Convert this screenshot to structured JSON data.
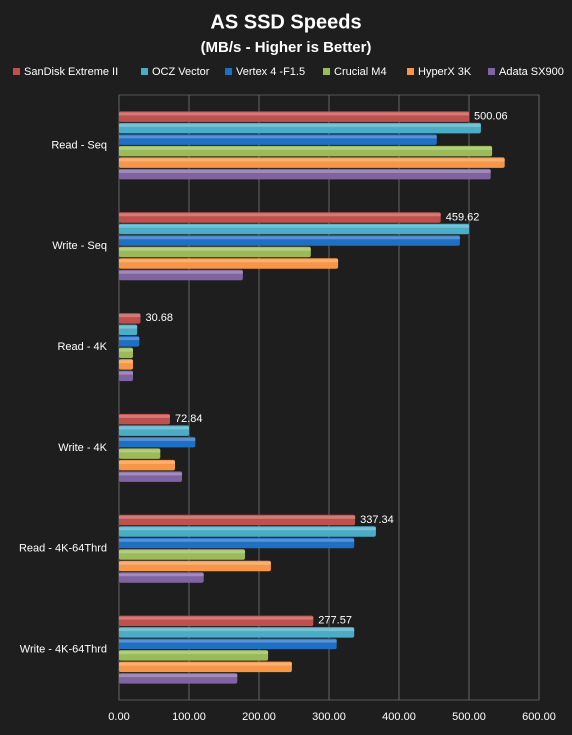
{
  "chart_data": {
    "type": "hbar",
    "title": "AS SSD Speeds",
    "subtitle": "(MB/s - Higher is Better)",
    "categories": [
      "Read - Seq",
      "Write - Seq",
      "Read - 4K",
      "Write - 4K",
      "Read - 4K-64Thrd",
      "Write - 4K-64Thrd"
    ],
    "series": [
      {
        "name": "SanDisk Extreme II",
        "color": "#c0504d",
        "values": [
          500.06,
          459.62,
          30.68,
          72.84,
          337.34,
          277.57
        ]
      },
      {
        "name": "OCZ Vector",
        "color": "#4bacc6",
        "values": [
          517,
          500,
          26,
          100,
          367,
          336
        ]
      },
      {
        "name": "Vertex 4 -F1.5",
        "color": "#1f6fc5",
        "values": [
          454,
          487,
          29,
          109,
          336,
          311
        ]
      },
      {
        "name": "Crucial M4",
        "color": "#9bbb59",
        "values": [
          533,
          274,
          20,
          59,
          180,
          213
        ]
      },
      {
        "name": "HyperX 3K",
        "color": "#f79646",
        "values": [
          551,
          313,
          20,
          80,
          217,
          247
        ]
      },
      {
        "name": "Adata SX900",
        "color": "#8064a2",
        "values": [
          531,
          177,
          20,
          90,
          121,
          169
        ]
      }
    ],
    "xlim": [
      0,
      600
    ],
    "xticks": [
      {
        "value": 0,
        "label": "0.00"
      },
      {
        "value": 100,
        "label": "100.00"
      },
      {
        "value": 200,
        "label": "200.00"
      },
      {
        "value": 300,
        "label": "300.00"
      },
      {
        "value": 400,
        "label": "400.00"
      },
      {
        "value": 500,
        "label": "500.00"
      },
      {
        "value": 600,
        "label": "600.00"
      }
    ],
    "grid": true,
    "legend": "top"
  }
}
